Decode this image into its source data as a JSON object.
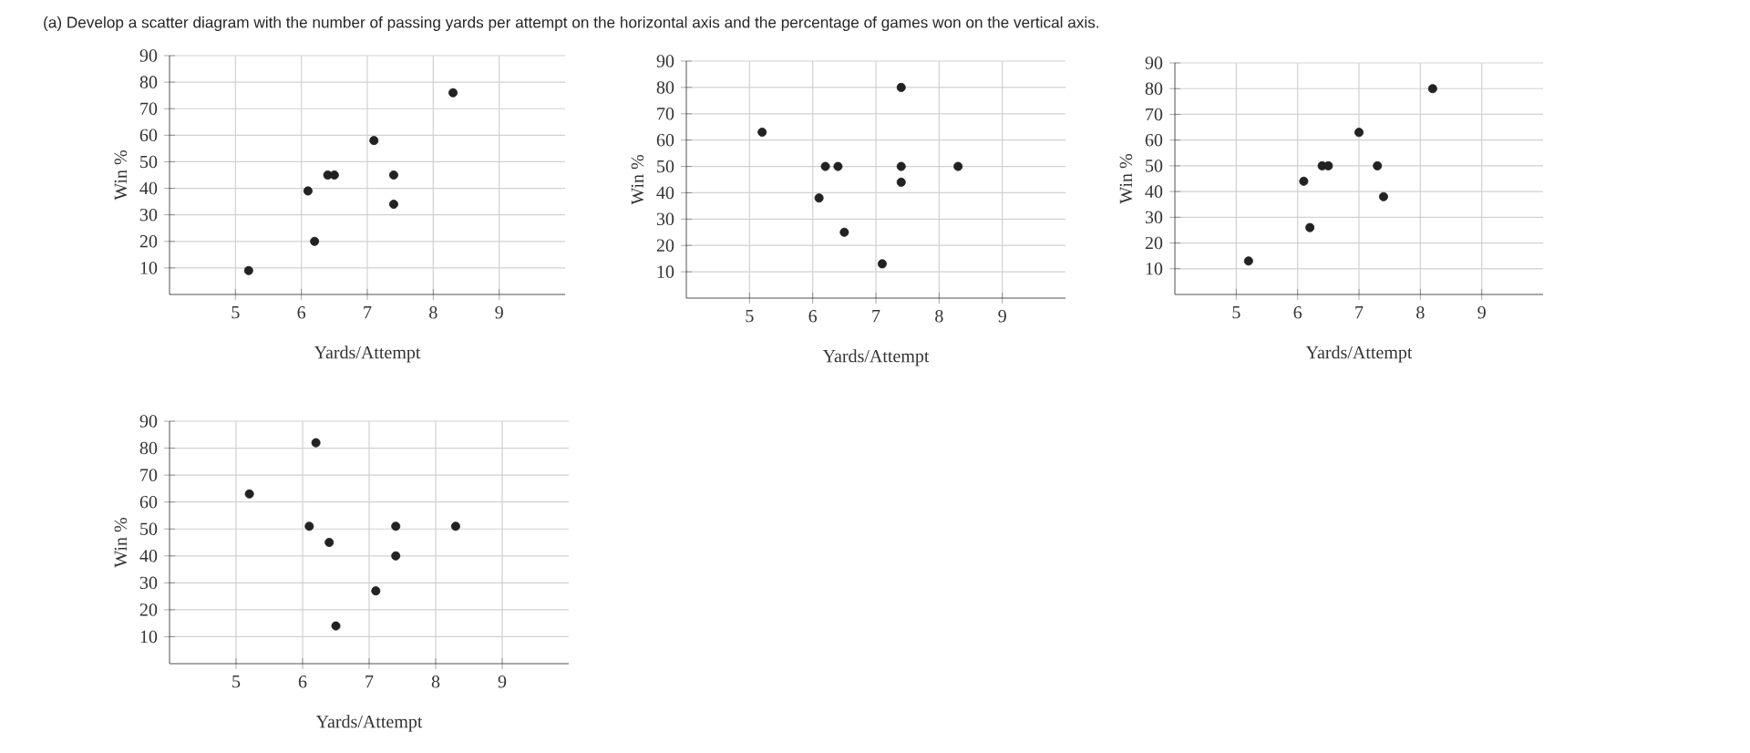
{
  "chart_data": [
    {
      "type": "scatter",
      "title": "(a) Develop a scatter diagram with the number of passing yards per attempt on the horizontal axis and the percentage of games won on the vertical axis.",
      "xlabel": "Yards/Attempt",
      "ylabel": "Win %",
      "xlim": [
        4,
        10
      ],
      "ylim": [
        0,
        90
      ],
      "xticks": [
        5,
        6,
        7,
        8,
        9
      ],
      "yticks": [
        10,
        20,
        30,
        40,
        50,
        60,
        70,
        80,
        90
      ],
      "grid": true,
      "series": [
        {
          "color": "#222222",
          "x": [
            5.2,
            6.1,
            6.2,
            6.4,
            6.5,
            7.1,
            7.4,
            7.4,
            8.3
          ],
          "values": [
            9,
            39,
            20,
            45,
            45,
            58,
            45,
            34,
            76
          ]
        }
      ]
    },
    {
      "type": "scatter",
      "xlabel": "Yards/Attempt",
      "ylabel": "Win %",
      "xlim": [
        4,
        10
      ],
      "ylim": [
        0,
        90
      ],
      "xticks": [
        5,
        6,
        7,
        8,
        9
      ],
      "yticks": [
        10,
        20,
        30,
        40,
        50,
        60,
        70,
        80,
        90
      ],
      "grid": true,
      "series": [
        {
          "color": "#222222",
          "x": [
            5.2,
            6.1,
            6.2,
            6.4,
            6.5,
            7.1,
            7.4,
            7.4,
            7.4,
            8.3
          ],
          "values": [
            63,
            38,
            50,
            50,
            25,
            13,
            80,
            50,
            44,
            50
          ]
        }
      ]
    },
    {
      "type": "scatter",
      "xlabel": "Yards/Attempt",
      "ylabel": "Win %",
      "xlim": [
        4,
        10
      ],
      "ylim": [
        0,
        90
      ],
      "xticks": [
        5,
        6,
        7,
        8,
        9
      ],
      "yticks": [
        10,
        20,
        30,
        40,
        50,
        60,
        70,
        80,
        90
      ],
      "grid": true,
      "series": [
        {
          "color": "#222222",
          "x": [
            5.2,
            6.1,
            6.2,
            6.4,
            6.5,
            7.0,
            7.3,
            7.4,
            8.2
          ],
          "values": [
            13,
            44,
            26,
            50,
            50,
            63,
            50,
            38,
            80
          ]
        }
      ]
    },
    {
      "type": "scatter",
      "xlabel": "Yards/Attempt",
      "ylabel": "Win %",
      "xlim": [
        4,
        10
      ],
      "ylim": [
        0,
        90
      ],
      "xticks": [
        5,
        6,
        7,
        8,
        9
      ],
      "yticks": [
        10,
        20,
        30,
        40,
        50,
        60,
        70,
        80,
        90
      ],
      "grid": true,
      "series": [
        {
          "color": "#222222",
          "x": [
            5.2,
            6.1,
            6.2,
            6.4,
            6.5,
            7.1,
            7.4,
            7.4,
            8.3
          ],
          "values": [
            63,
            51,
            82,
            45,
            14,
            27,
            51,
            40,
            51
          ]
        }
      ]
    }
  ]
}
